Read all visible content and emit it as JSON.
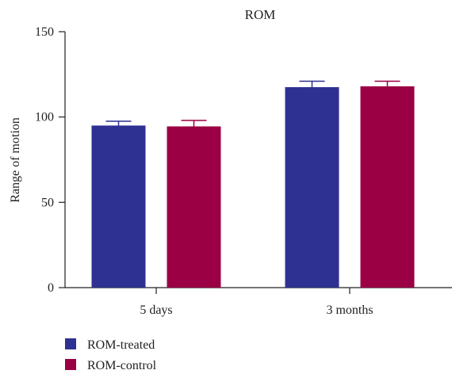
{
  "chart_data": {
    "type": "bar",
    "title": "ROM",
    "xlabel": "",
    "ylabel": "Range of motion",
    "ylim": [
      0,
      150
    ],
    "yticks": [
      0,
      50,
      100,
      150
    ],
    "categories": [
      "5 days",
      "3 months"
    ],
    "series": [
      {
        "name": "ROM-treated",
        "color": "#2e3192",
        "values": [
          95,
          117.5
        ],
        "errors": [
          2.5,
          3.5
        ]
      },
      {
        "name": "ROM-control",
        "color": "#9b0044",
        "values": [
          94.5,
          118
        ],
        "errors": [
          3.5,
          3
        ]
      }
    ],
    "error_bars": true,
    "grid": false,
    "legend_position": "bottom-left"
  }
}
